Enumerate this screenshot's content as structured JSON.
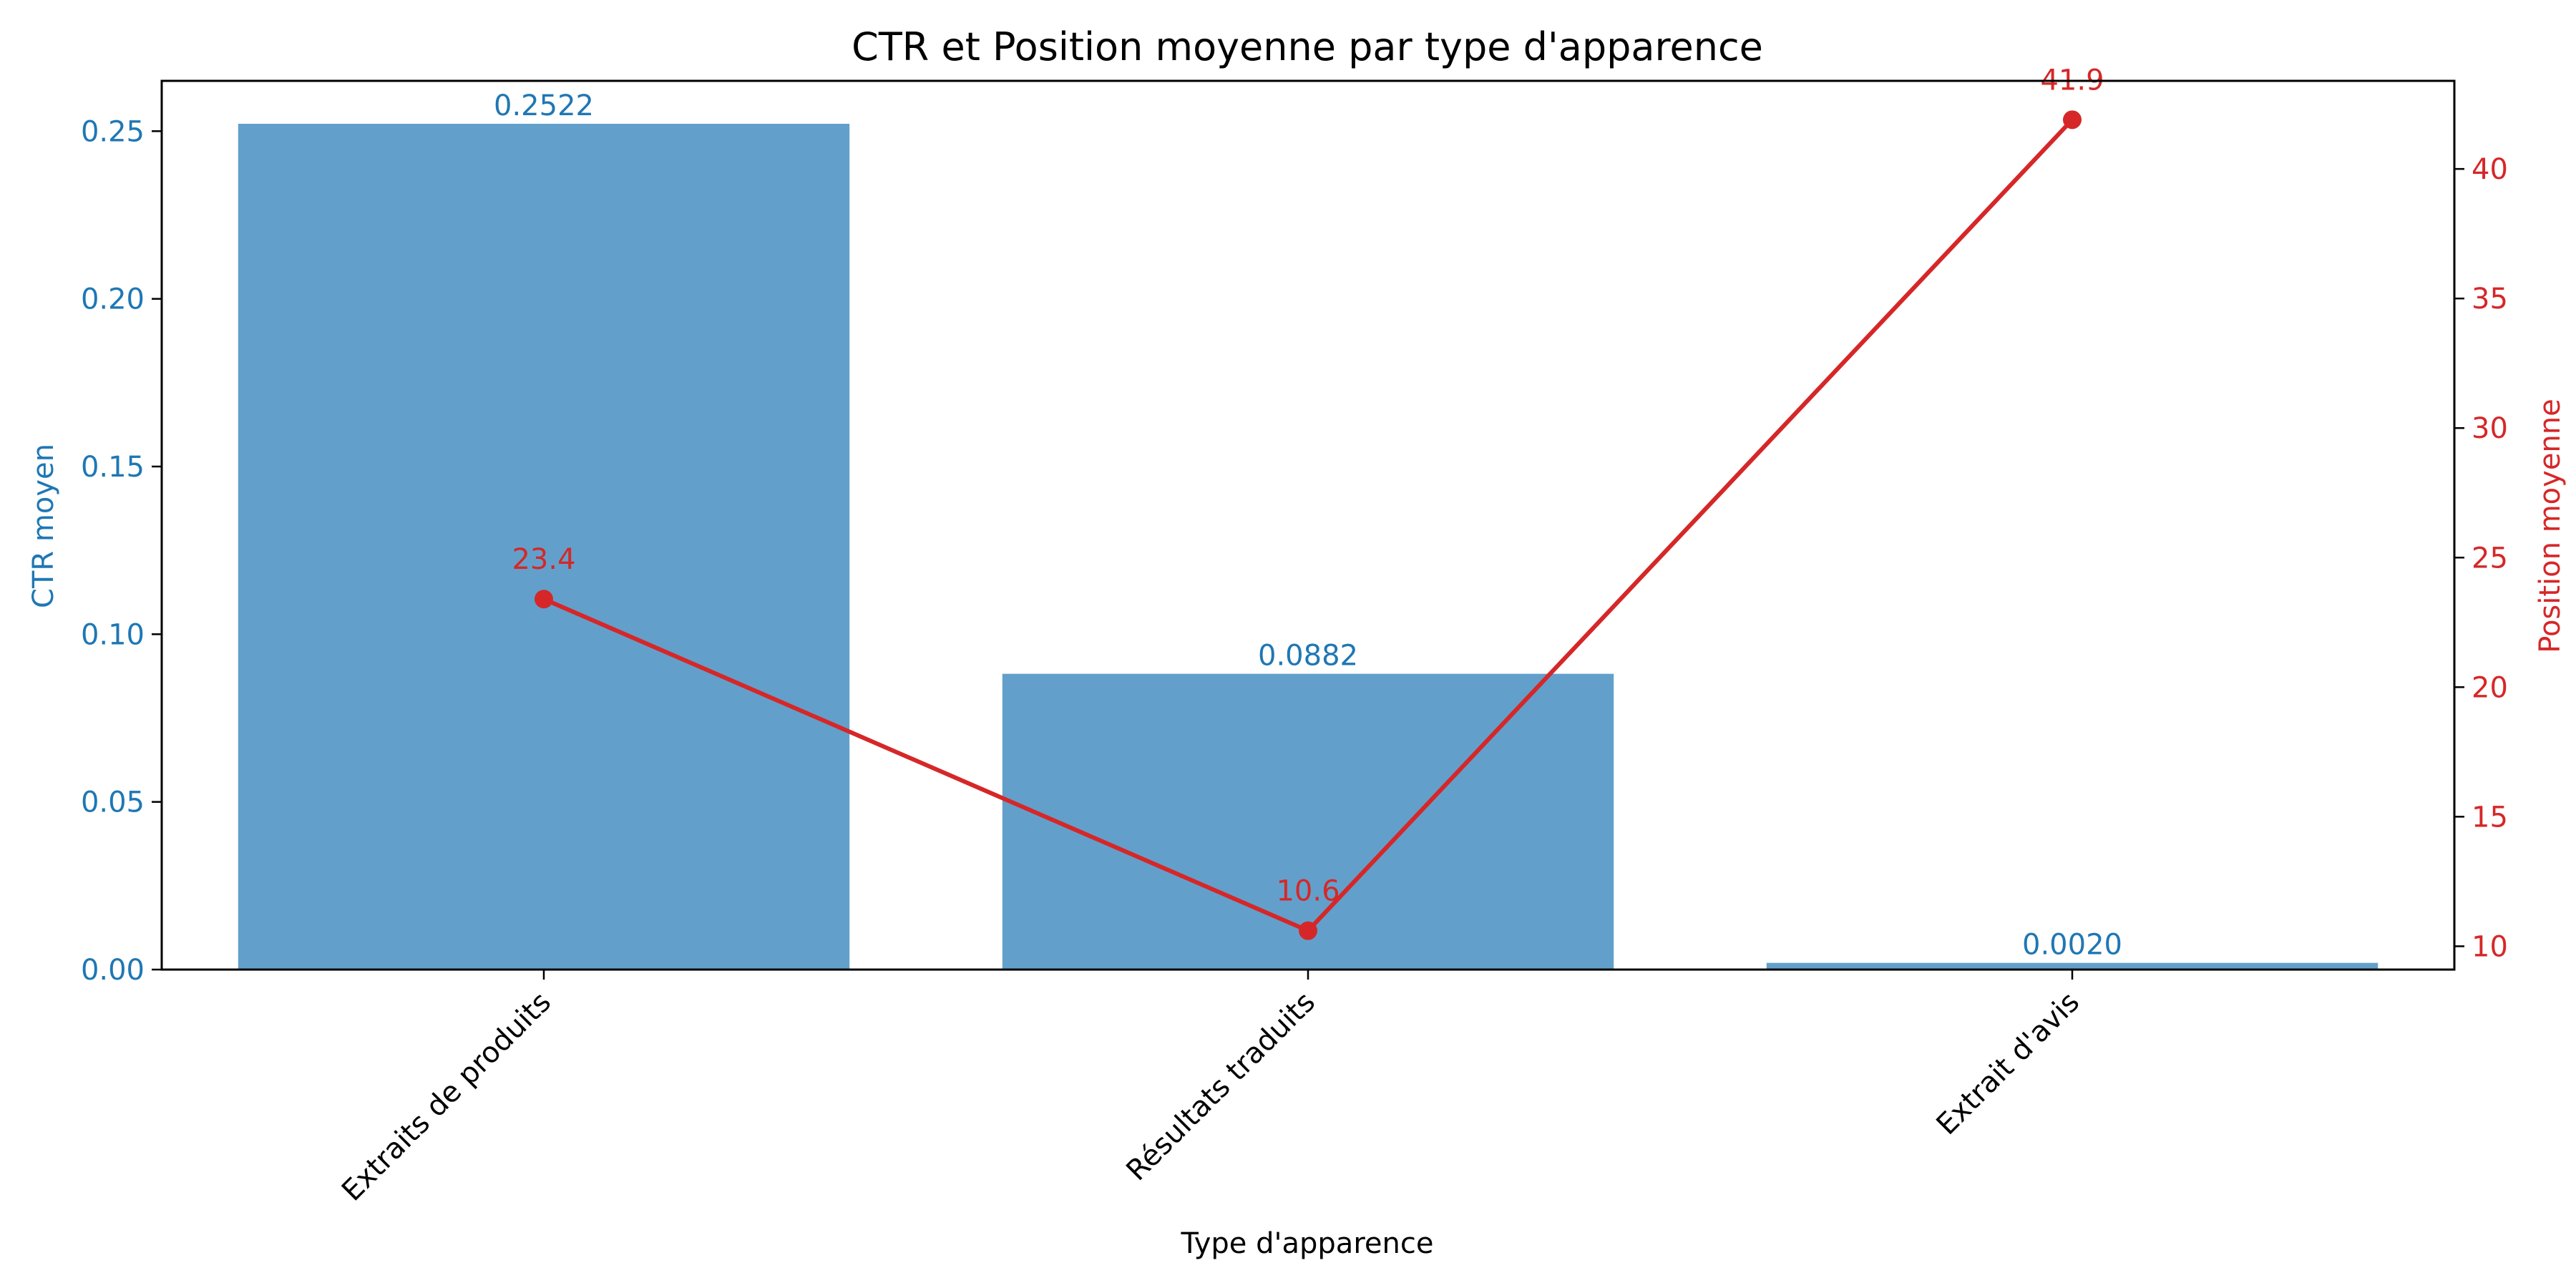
{
  "chart_data": {
    "type": "bar",
    "title": "CTR et Position moyenne par type d'apparence",
    "xlabel": "Type d'apparence",
    "ylabel_left": "CTR moyen",
    "ylabel_right": "Position moyenne",
    "categories": [
      "Extraits de produits",
      "Résultats traduits",
      "Extrait d'avis"
    ],
    "series": [
      {
        "name": "CTR moyen",
        "type": "bar",
        "axis": "left",
        "values": [
          0.2522,
          0.0882,
          0.002
        ],
        "labels": [
          "0.2522",
          "0.0882",
          "0.0020"
        ],
        "color": "#1f77b4"
      },
      {
        "name": "Position moyenne",
        "type": "line",
        "axis": "right",
        "values": [
          23.4,
          10.6,
          41.9
        ],
        "labels": [
          "23.4",
          "10.6",
          "41.9"
        ],
        "color": "#d62728"
      }
    ],
    "ylim_left": [
      0,
      0.265
    ],
    "ylim_right": [
      9.1,
      43.4
    ],
    "yticks_left": [
      "0.00",
      "0.05",
      "0.10",
      "0.15",
      "0.20",
      "0.25"
    ],
    "yticks_right": [
      "10",
      "15",
      "20",
      "25",
      "30",
      "35",
      "40"
    ],
    "grid": false,
    "colors": {
      "left_axis": "#1f77b4",
      "right_axis": "#d62728",
      "bar_fill": "#62a0cb"
    }
  }
}
